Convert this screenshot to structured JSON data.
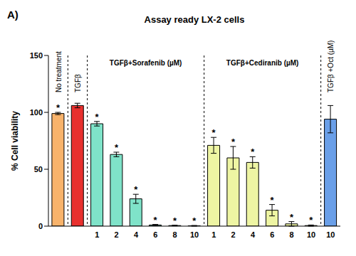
{
  "chart_data": {
    "type": "bar",
    "panel_label": "A)",
    "title": "Assay ready LX-2 cells",
    "y_label": "% Cell viability",
    "categories": [
      null,
      null,
      "1",
      "2",
      "4",
      "6",
      "8",
      "10",
      "1",
      "2",
      "4",
      "6",
      "8",
      "10",
      "10"
    ],
    "groups": [
      "No treatment",
      "TGFβ",
      "TGFβ+Sorafenib (µM)",
      "TGFβ+Sorafenib (µM)",
      "TGFβ+Sorafenib (µM)",
      "TGFβ+Sorafenib (µM)",
      "TGFβ+Sorafenib (µM)",
      "TGFβ+Sorafenib (µM)",
      "TGFβ+Cediranib (µM)",
      "TGFβ+Cediranib (µM)",
      "TGFβ+Cediranib (µM)",
      "TGFβ+Cediranib (µM)",
      "TGFβ+Cediranib (µM)",
      "TGFβ+Cediranib (µM)",
      "TGFβ +Oct (µM)"
    ],
    "values": [
      99,
      106,
      90,
      63,
      24,
      1,
      0.5,
      0.3,
      71,
      60,
      56,
      14,
      2,
      0.5,
      94
    ],
    "errors": [
      1,
      2,
      2,
      2,
      4,
      0.5,
      0.3,
      0.3,
      7,
      10,
      5,
      5,
      2,
      0.5,
      12
    ],
    "colors": [
      "#f8b36b",
      "#e8302e",
      "#7fe3c9",
      "#7fe3c9",
      "#7fe3c9",
      "#7fe3c9",
      "#7fe3c9",
      "#7fe3c9",
      "#eef5a3",
      "#eef5a3",
      "#eef5a3",
      "#eef5a3",
      "#eef5a3",
      "#eef5a3",
      "#6a9fe8"
    ],
    "annotations": [
      "*",
      null,
      "*",
      "*",
      "*",
      "*",
      "*",
      "*",
      "*",
      "*",
      "*",
      "*",
      "*",
      "*",
      null
    ],
    "ylim": [
      0,
      150
    ],
    "yticks": [
      0,
      50,
      100,
      150
    ]
  }
}
